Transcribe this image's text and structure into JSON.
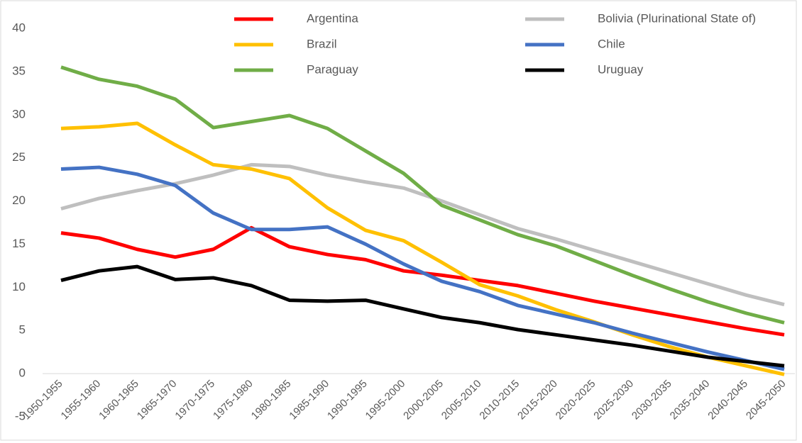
{
  "chart_data": {
    "type": "line",
    "categories": [
      "1950-1955",
      "1955-1960",
      "1960-1965",
      "1965-1970",
      "1970-1975",
      "1975-1980",
      "1980-1985",
      "1985-1990",
      "1990-1995",
      "1995-2000",
      "2000-2005",
      "2005-2010",
      "2010-2015",
      "2015-2020",
      "2020-2025",
      "2025-2030",
      "2030-2035",
      "2035-2040",
      "2040-2045",
      "2045-2050"
    ],
    "series": [
      {
        "name": "Argentina",
        "color": "#ff0000",
        "values": [
          16.3,
          15.7,
          14.4,
          13.5,
          14.4,
          16.9,
          14.7,
          13.8,
          13.2,
          11.9,
          11.4,
          10.8,
          10.2,
          9.3,
          8.4,
          7.6,
          6.8,
          6.0,
          5.2,
          4.5
        ]
      },
      {
        "name": "Bolivia (Plurinational State of)",
        "color": "#bfbfbf",
        "values": [
          19.1,
          20.3,
          21.2,
          22.0,
          23.0,
          24.2,
          24.0,
          23.0,
          22.2,
          21.5,
          20.0,
          18.4,
          16.8,
          15.6,
          14.3,
          13.0,
          11.7,
          10.4,
          9.1,
          8.0
        ]
      },
      {
        "name": "Brazil",
        "color": "#ffc000",
        "values": [
          28.4,
          28.6,
          29.0,
          26.5,
          24.2,
          23.7,
          22.6,
          19.2,
          16.6,
          15.4,
          12.9,
          10.3,
          9.0,
          7.4,
          6.0,
          4.5,
          3.1,
          1.9,
          0.9,
          -0.1
        ]
      },
      {
        "name": "Chile",
        "color": "#4472c4",
        "values": [
          23.7,
          23.9,
          23.1,
          21.8,
          18.6,
          16.7,
          16.7,
          17.0,
          15.0,
          12.7,
          10.7,
          9.5,
          7.9,
          6.9,
          5.9,
          4.7,
          3.6,
          2.5,
          1.5,
          0.5
        ]
      },
      {
        "name": "Paraguay",
        "color": "#70ad47",
        "values": [
          35.5,
          34.1,
          33.3,
          31.8,
          28.5,
          29.2,
          29.9,
          28.4,
          25.8,
          23.2,
          19.5,
          17.8,
          16.1,
          14.8,
          13.1,
          11.4,
          9.8,
          8.3,
          7.0,
          5.9
        ]
      },
      {
        "name": "Uruguay",
        "color": "#000000",
        "values": [
          10.8,
          11.9,
          12.4,
          10.9,
          11.1,
          10.2,
          8.5,
          8.4,
          8.5,
          7.5,
          6.5,
          5.9,
          5.1,
          4.5,
          3.9,
          3.3,
          2.6,
          1.9,
          1.4,
          0.9
        ]
      }
    ],
    "ylim": [
      -5,
      40
    ],
    "yticks": [
      -5,
      0,
      5,
      10,
      15,
      20,
      25,
      30,
      35,
      40
    ],
    "grid": false
  }
}
